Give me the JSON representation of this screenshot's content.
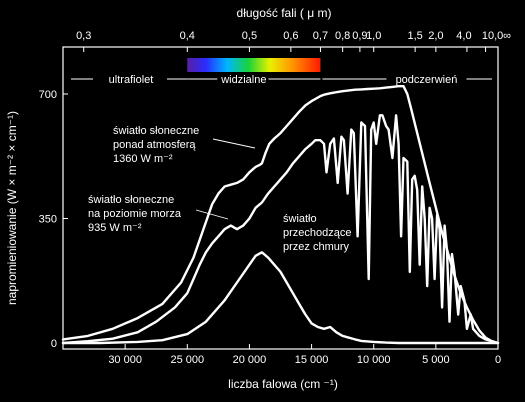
{
  "chart_data": {
    "type": "line",
    "xlabel": "liczba falowa (cm ⁻¹)",
    "ylabel": "napromieniowanie (W × m⁻² × cm⁻¹)",
    "top_axis_label": "długość fali ( μ m)",
    "xlim": [
      35000,
      0
    ],
    "ylim": [
      0,
      750
    ],
    "x_ticks": [
      {
        "value": 30000,
        "label": "30 000"
      },
      {
        "value": 25000,
        "label": "25 000"
      },
      {
        "value": 20000,
        "label": "20 000"
      },
      {
        "value": 15000,
        "label": "15 000"
      },
      {
        "value": 10000,
        "label": "10 000"
      },
      {
        "value": 5000,
        "label": "5 000"
      },
      {
        "value": 0,
        "label": "0"
      }
    ],
    "y_ticks": [
      {
        "value": 700,
        "label": "700"
      },
      {
        "value": 350,
        "label": "350"
      },
      {
        "value": 0,
        "label": "0"
      }
    ],
    "top_ticks": [
      {
        "value": 0.3,
        "label": "0,3"
      },
      {
        "value": 0.4,
        "label": "0,4"
      },
      {
        "value": 0.5,
        "label": "0,5"
      },
      {
        "value": 0.6,
        "label": "0,6"
      },
      {
        "value": 0.7,
        "label": "0,7"
      },
      {
        "value": 0.8,
        "label": "0,8"
      },
      {
        "value": 0.9,
        "label": "0,9"
      },
      {
        "value": 1.0,
        "label": "1,0"
      },
      {
        "value": 1.5,
        "label": "1,5"
      },
      {
        "value": 2.0,
        "label": "2,0"
      },
      {
        "value": 4.0,
        "label": "4,0"
      },
      {
        "value": 10.0,
        "label": "10,0"
      },
      {
        "value": null,
        "label": "∞"
      }
    ],
    "regions": [
      {
        "label": "ultrafiolet",
        "from_um": 0.3,
        "to_um": 0.4
      },
      {
        "label": "widzialne",
        "from_um": 0.4,
        "to_um": 0.7
      },
      {
        "label": "podczerwień",
        "from_um": 0.7,
        "to_um": 10.0
      }
    ],
    "series": [
      {
        "id": "outer",
        "x": [
          35000,
          33000,
          31000,
          29000,
          27000,
          25500,
          24500,
          24000,
          23500,
          23000,
          22500,
          22000,
          21500,
          21000,
          20500,
          20000,
          19500,
          19200,
          19000,
          18700,
          18400,
          18000,
          17500,
          17000,
          16500,
          16000,
          15500,
          15000,
          14700,
          14500,
          14300,
          14000,
          13500,
          13000,
          12500,
          12000,
          11500,
          11000,
          10500,
          10000,
          9500,
          9000,
          8500,
          8000,
          7600,
          7300,
          7000,
          6500,
          6000,
          5500,
          5000,
          4500,
          4000,
          3500,
          3000,
          2500,
          2000,
          1500,
          1000,
          500,
          0
        ],
        "values": [
          10,
          20,
          40,
          70,
          110,
          170,
          240,
          290,
          340,
          390,
          420,
          440,
          445,
          450,
          460,
          480,
          495,
          500,
          505,
          535,
          560,
          575,
          590,
          610,
          630,
          650,
          668,
          680,
          686,
          690,
          694,
          698,
          702,
          705,
          708,
          710,
          712,
          713,
          714,
          715,
          716,
          718,
          720,
          722,
          722,
          700,
          660,
          590,
          520,
          450,
          380,
          310,
          250,
          190,
          140,
          100,
          65,
          35,
          15,
          5,
          0
        ]
      },
      {
        "id": "sea_level",
        "x": [
          35000,
          33000,
          31000,
          29000,
          27500,
          26000,
          25000,
          24500,
          24000,
          23500,
          23000,
          22500,
          22000,
          21500,
          21000,
          20500,
          20000,
          19500,
          19000,
          18500,
          18000,
          17500,
          17000,
          16500,
          16000,
          15500,
          15000,
          14700,
          14300,
          14000,
          13800,
          13500,
          13200,
          12900,
          12600,
          12400,
          12100,
          11800,
          11600,
          11300,
          11000,
          10700,
          10400,
          10200,
          10000,
          9800,
          9500,
          9300,
          9000,
          8800,
          8500,
          8200,
          8000,
          7800,
          7600,
          7300,
          7100,
          6900,
          6700,
          6500,
          6300,
          6100,
          5900,
          5700,
          5500,
          5300,
          5100,
          4900,
          4700,
          4500,
          4300,
          4100,
          3900,
          3700,
          3500,
          3200,
          3000,
          2700,
          2500,
          2200,
          2000,
          1500,
          1000,
          500,
          0
        ],
        "values": [
          0,
          5,
          12,
          30,
          60,
          100,
          140,
          180,
          220,
          255,
          280,
          300,
          320,
          330,
          320,
          330,
          350,
          380,
          395,
          420,
          440,
          460,
          480,
          505,
          525,
          545,
          560,
          570,
          570,
          560,
          480,
          560,
          575,
          450,
          580,
          570,
          420,
          600,
          590,
          300,
          620,
          610,
          180,
          600,
          620,
          560,
          640,
          640,
          610,
          600,
          520,
          640,
          560,
          300,
          520,
          510,
          200,
          460,
          470,
          430,
          220,
          440,
          350,
          160,
          380,
          350,
          180,
          360,
          320,
          100,
          330,
          260,
          60,
          250,
          200,
          80,
          160,
          120,
          40,
          80,
          40,
          20,
          10,
          5,
          0
        ]
      },
      {
        "id": "cloud",
        "x": [
          35000,
          32000,
          29000,
          27000,
          25000,
          23500,
          22000,
          21000,
          20000,
          19500,
          19000,
          18500,
          18000,
          17500,
          17000,
          16500,
          16000,
          15500,
          15000,
          14500,
          14000,
          13500,
          13000,
          12500,
          12000,
          11500,
          11000,
          10000,
          9000,
          8000,
          7000,
          6000,
          5000,
          4000,
          3000,
          2000,
          1000,
          0
        ],
        "values": [
          0,
          0,
          3,
          8,
          25,
          60,
          120,
          170,
          220,
          245,
          255,
          240,
          220,
          200,
          170,
          140,
          110,
          80,
          55,
          45,
          40,
          45,
          30,
          20,
          15,
          10,
          6,
          3,
          1,
          0,
          0,
          0,
          0,
          0,
          0,
          0,
          0,
          0
        ]
      }
    ],
    "annotations": {
      "outer": [
        "światło słoneczne",
        "ponad atmosferą",
        "1360 W m⁻²"
      ],
      "sea_level": [
        "światło słoneczne",
        "na poziomie morza",
        "935 W m⁻²"
      ],
      "cloud": [
        "światło",
        "przechodzące",
        "przez chmury"
      ]
    }
  }
}
